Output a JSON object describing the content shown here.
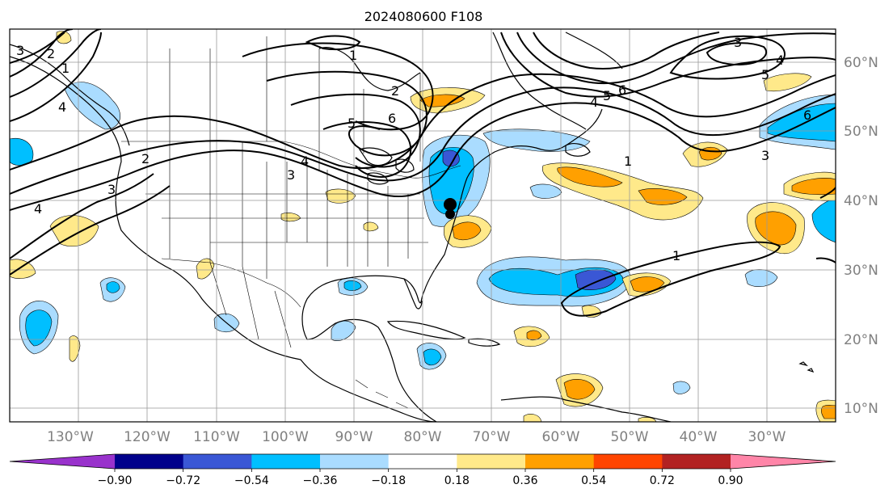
{
  "title": "2024080600 F108",
  "map": {
    "lon_labels": [
      "130°W",
      "120°W",
      "110°W",
      "100°W",
      "90°W",
      "80°W",
      "70°W",
      "60°W",
      "50°W",
      "40°W",
      "30°W"
    ],
    "lat_labels": [
      "60°N",
      "50°N",
      "40°N",
      "30°N",
      "20°N",
      "10°N"
    ],
    "contour_labels": [
      "3",
      "2",
      "1",
      "4",
      "3",
      "4",
      "1",
      "2",
      "6",
      "5",
      "4",
      "3",
      "2",
      "6",
      "5",
      "4",
      "3",
      "1",
      "3",
      "4",
      "5",
      "6",
      "1"
    ]
  },
  "colorbar": {
    "tick_labels": [
      "−0.90",
      "−0.72",
      "−0.54",
      "−0.36",
      "−0.18",
      "0.18",
      "0.36",
      "0.54",
      "0.72",
      "0.90"
    ],
    "colors": [
      "#9932cc",
      "#00008b",
      "#3a57d5",
      "#00bfff",
      "#aadcff",
      "#ffffff",
      "#ffe98a",
      "#ffa000",
      "#ff4500",
      "#b22222",
      "#ff85a8"
    ]
  }
}
